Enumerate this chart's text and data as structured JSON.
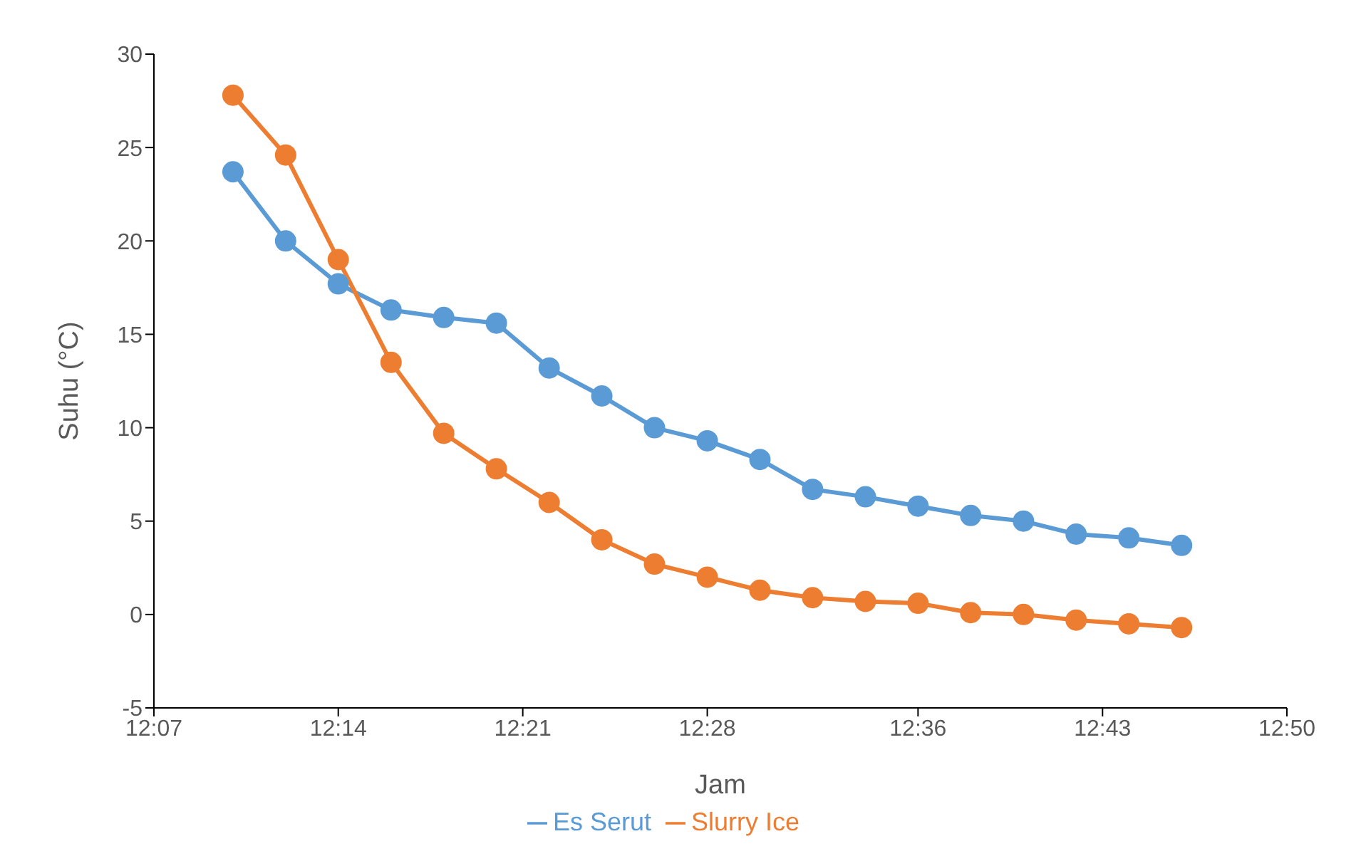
{
  "chart_data": {
    "type": "line",
    "xlabel": "Jam",
    "ylabel": "Suhu (°C)",
    "x": [
      12.1667,
      12.2,
      12.2333,
      12.2667,
      12.3,
      12.3333,
      12.3667,
      12.4,
      12.4333,
      12.4667,
      12.5,
      12.5333,
      12.5667,
      12.6,
      12.6333,
      12.6667,
      12.7,
      12.7333,
      12.7667
    ],
    "series": [
      {
        "name": "Es Serut",
        "color": "#5b9bd5",
        "values": [
          23.7,
          20.0,
          17.7,
          16.3,
          15.9,
          15.6,
          13.2,
          11.7,
          10.0,
          9.3,
          8.3,
          6.7,
          6.3,
          5.8,
          5.3,
          5.0,
          4.3,
          4.1,
          3.7
        ]
      },
      {
        "name": "Slurry Ice",
        "color": "#ed7d31",
        "values": [
          27.8,
          24.6,
          19.0,
          13.5,
          9.7,
          7.8,
          6.0,
          4.0,
          2.7,
          2.0,
          1.3,
          0.9,
          0.7,
          0.6,
          0.1,
          0.0,
          -0.3,
          -0.5,
          -0.7
        ]
      }
    ],
    "xlim": [
      12.1167,
      12.8333
    ],
    "xticks": [
      {
        "value": 12.1167,
        "label": "12:07"
      },
      {
        "value": 12.2333,
        "label": "12:14"
      },
      {
        "value": 12.35,
        "label": "12:21"
      },
      {
        "value": 12.4667,
        "label": "12:28"
      },
      {
        "value": 12.6,
        "label": "12:36"
      },
      {
        "value": 12.7167,
        "label": "12:43"
      },
      {
        "value": 12.8333,
        "label": "12:50"
      }
    ],
    "ylim": [
      -5,
      30
    ],
    "yticks": [
      -5,
      0,
      5,
      10,
      15,
      20,
      25,
      30
    ],
    "grid": false,
    "legend": "bottom",
    "marker": "circle",
    "line_style": "solid"
  }
}
